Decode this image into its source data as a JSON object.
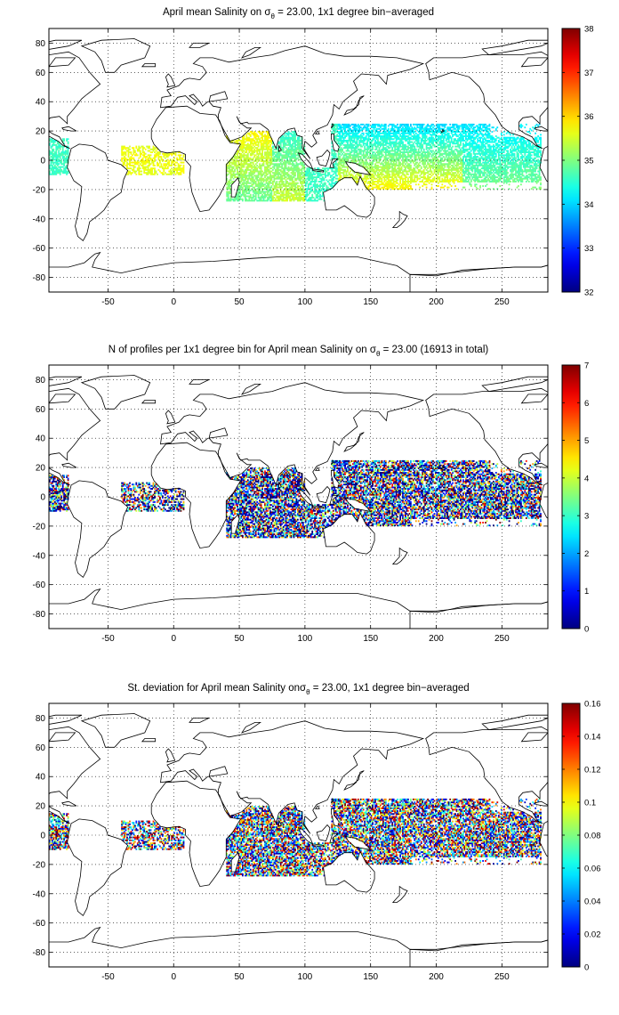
{
  "panels": [
    {
      "id": "mean-salinity",
      "title_before": "April mean Salinity on ",
      "title_sigma": "σ",
      "title_sub": "θ",
      "title_after": " = 23.00, 1x1 degree bin−averaged",
      "colorbar": {
        "min": 32,
        "max": 38,
        "ticks": [
          "32",
          "33",
          "34",
          "35",
          "36",
          "37",
          "38"
        ]
      },
      "field": "salinity"
    },
    {
      "id": "profile-count",
      "title_before": "N of profiles per 1x1 degree bin for April mean Salinity on ",
      "title_sigma": "σ",
      "title_sub": "θ",
      "title_after": " = 23.00 (16913 in total)",
      "colorbar": {
        "min": 0,
        "max": 7,
        "ticks": [
          "0",
          "1",
          "2",
          "3",
          "4",
          "5",
          "6",
          "7"
        ]
      },
      "field": "count"
    },
    {
      "id": "std-dev",
      "title_before": "St. deviation for April mean Salinity on",
      "title_sigma": "σ",
      "title_sub": "θ",
      "title_after": " = 23.00, 1x1 degree bin−averaged",
      "colorbar": {
        "min": 0,
        "max": 0.16,
        "ticks": [
          "0",
          "0.02",
          "0.04",
          "0.06",
          "0.08",
          "0.1",
          "0.12",
          "0.14",
          "0.16"
        ]
      },
      "field": "std"
    }
  ],
  "map": {
    "lon_range": [
      -95,
      285
    ],
    "lat_range": [
      -90,
      90
    ],
    "x_ticks": [
      "-50",
      "0",
      "50",
      "100",
      "150",
      "200",
      "250"
    ],
    "x_tick_values": [
      -50,
      0,
      50,
      100,
      150,
      200,
      250
    ],
    "y_ticks": [
      "80",
      "60",
      "40",
      "20",
      "0",
      "-20",
      "-40",
      "-60",
      "-80"
    ],
    "y_tick_values": [
      80,
      60,
      40,
      20,
      0,
      -20,
      -40,
      -60,
      -80
    ],
    "grid": true,
    "colormap": "jet"
  }
}
